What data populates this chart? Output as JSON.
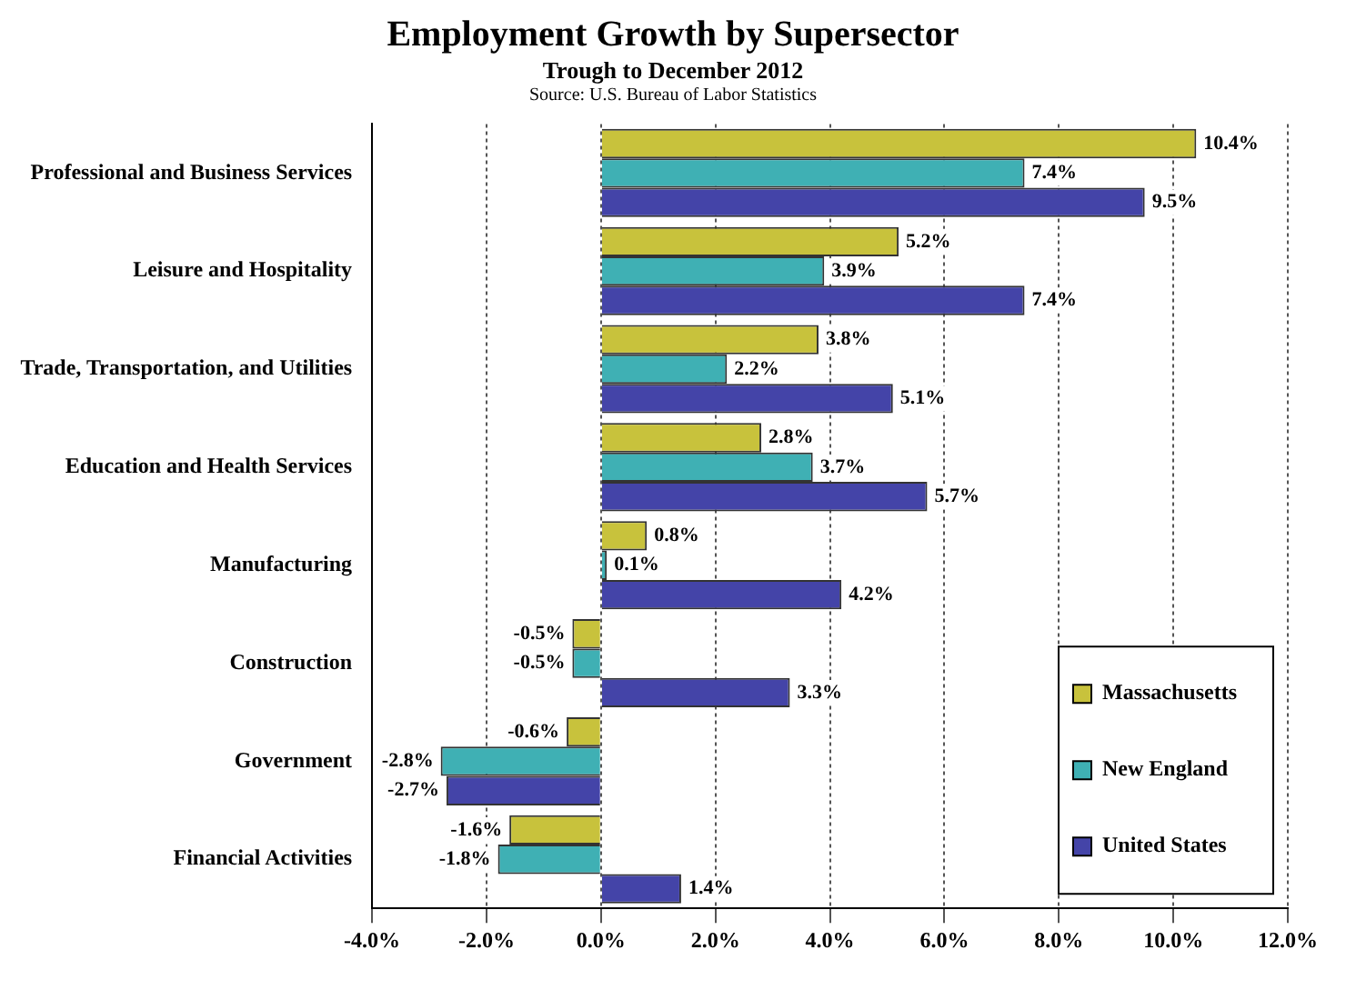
{
  "chart_data": {
    "type": "bar",
    "orientation": "horizontal",
    "title": "Employment Growth by Supersector",
    "subtitle": "Trough to December 2012",
    "annotations": [
      "Source: U.S. Bureau of Labor Statistics"
    ],
    "categories": [
      "Professional and Business Services",
      "Leisure and Hospitality",
      "Trade, Transportation, and Utilities",
      "Education and Health Services",
      "Manufacturing",
      "Construction",
      "Government",
      "Financial Activities"
    ],
    "series": [
      {
        "name": "Massachusetts",
        "color": "#c8c23c",
        "values": [
          10.4,
          5.2,
          3.8,
          2.8,
          0.8,
          -0.5,
          -0.6,
          -1.6
        ],
        "value_labels": [
          "10.4%",
          "5.2%",
          "3.8%",
          "2.8%",
          "0.8%",
          "-0.5%",
          "-0.6%",
          "-1.6%"
        ]
      },
      {
        "name": "New England",
        "color": "#3fb0b4",
        "values": [
          7.4,
          3.9,
          2.2,
          3.7,
          0.1,
          -0.5,
          -2.8,
          -1.8
        ],
        "value_labels": [
          "7.4%",
          "3.9%",
          "2.2%",
          "3.7%",
          "0.1%",
          "-0.5%",
          "-2.8%",
          "-1.8%"
        ]
      },
      {
        "name": "United States",
        "color": "#4444a8",
        "values": [
          9.5,
          7.4,
          5.1,
          5.7,
          4.2,
          3.3,
          -2.7,
          1.4
        ],
        "value_labels": [
          "9.5%",
          "7.4%",
          "5.1%",
          "5.7%",
          "4.2%",
          "3.3%",
          "-2.7%",
          "1.4%"
        ]
      }
    ],
    "xlim": [
      -4,
      12
    ],
    "xticks": [
      {
        "value": -4,
        "label": "-4.0%"
      },
      {
        "value": -2,
        "label": "-2.0%"
      },
      {
        "value": 0,
        "label": "0.0%"
      },
      {
        "value": 2,
        "label": "2.0%"
      },
      {
        "value": 4,
        "label": "4.0%"
      },
      {
        "value": 6,
        "label": "6.0%"
      },
      {
        "value": 8,
        "label": "8.0%"
      },
      {
        "value": 10,
        "label": "10.0%"
      },
      {
        "value": 12,
        "label": "12.0%"
      }
    ],
    "grid": "x",
    "legend": "bottom right"
  }
}
